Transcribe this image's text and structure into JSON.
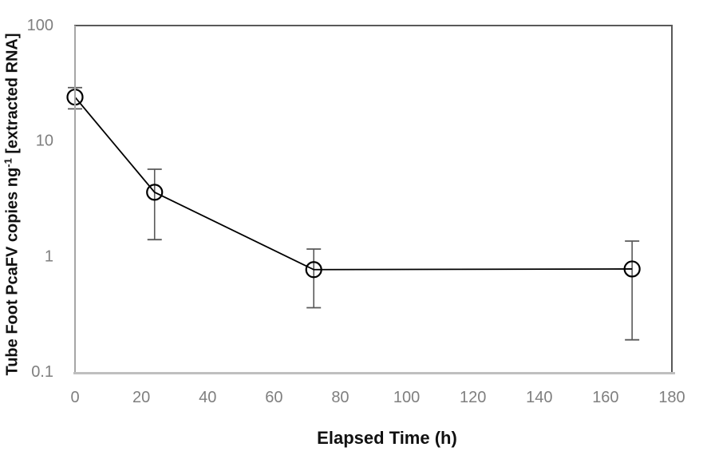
{
  "chart_data": {
    "type": "line",
    "title": "",
    "xlabel": "Elapsed Time (h)",
    "ylabel": "Tube Foot PcaFV copies ng⁻¹ [extracted RNA]",
    "ylabel_parts": {
      "main": "Tube Foot PcaFV copies ng",
      "superscript": "-1",
      "suffix": " [extracted RNA]"
    },
    "x_axis": {
      "min": 0,
      "max": 180,
      "ticks": [
        0,
        20,
        40,
        60,
        80,
        100,
        120,
        140,
        160,
        180
      ],
      "scale": "linear"
    },
    "y_axis": {
      "min": 0.1,
      "max": 100,
      "scale": "log",
      "ticks": [
        {
          "value": 100,
          "label": "100"
        },
        {
          "value": 10,
          "label": "10"
        },
        {
          "value": 1,
          "label": "1"
        },
        {
          "value": 0.1,
          "label": "0.1"
        }
      ]
    },
    "grid": "off",
    "legend": "none",
    "series": [
      {
        "marker": "open-circle",
        "points": [
          {
            "x": 0,
            "y": 24,
            "err_low": 19,
            "err_high": 29
          },
          {
            "x": 24,
            "y": 3.6,
            "err_low": 1.4,
            "err_high": 5.7
          },
          {
            "x": 72,
            "y": 0.77,
            "err_low": 0.36,
            "err_high": 1.16
          },
          {
            "x": 168,
            "y": 0.78,
            "err_low": 0.19,
            "err_high": 1.36
          }
        ]
      }
    ],
    "colors": {
      "background": "#ffffff",
      "tick_label": "#7f7f7f",
      "axis_title": "#111111",
      "series_line": "#000000",
      "marker_stroke": "#000000",
      "error_bar": "#595959",
      "border_top_right": "#595959",
      "axis_left": "#a6a6a6",
      "axis_bottom": "#bfbfbf"
    }
  }
}
